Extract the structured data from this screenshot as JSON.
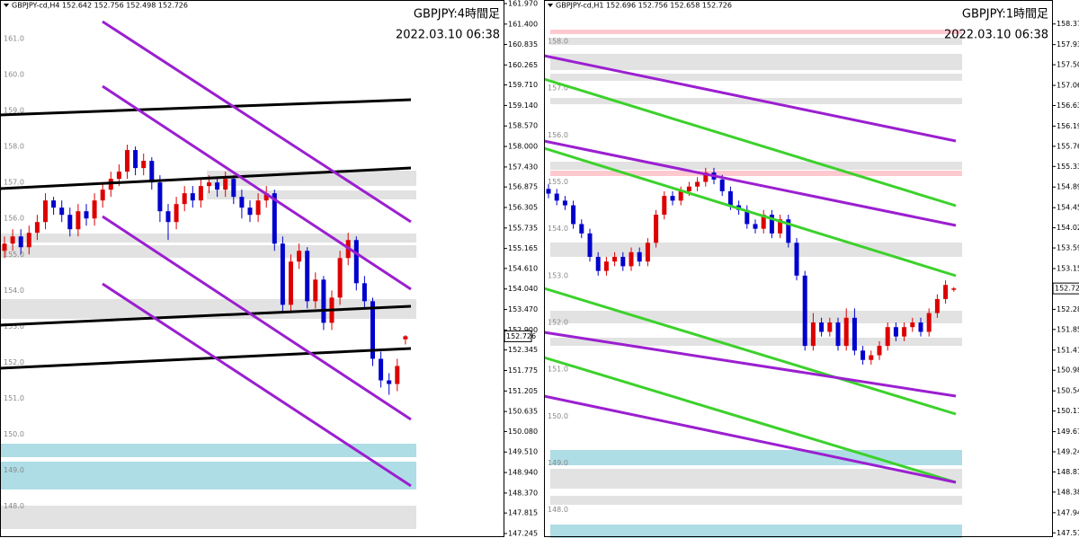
{
  "chart_data": [
    {
      "type": "candlestick",
      "title": "GBPJPY:4時間足",
      "subtitle": "2022.03.10 06:38",
      "header": "GBPJPY-cd,H4  152.642 152.756 152.498 152.726",
      "up_color": "#dd0000",
      "down_color": "#0000cc",
      "open": [
        155.1,
        155.3,
        155.5,
        155.2,
        155.6,
        155.9,
        156.5,
        156.3,
        156.1,
        155.7,
        156.2,
        156.0,
        156.5,
        156.8,
        157.1,
        157.3,
        157.9,
        157.4,
        157.6,
        157.0,
        156.2,
        155.9,
        156.4,
        156.7,
        156.5,
        156.9,
        157.0,
        156.8,
        157.1,
        156.6,
        156.3,
        156.1,
        156.5,
        156.7,
        155.3,
        153.6,
        154.8,
        155.1,
        153.7,
        154.3,
        153.1,
        153.8,
        154.9,
        155.4,
        154.2,
        153.7,
        152.1,
        151.5,
        151.4,
        152.642
      ],
      "high": [
        155.5,
        155.7,
        155.7,
        155.8,
        156.1,
        156.7,
        156.6,
        156.5,
        156.3,
        156.4,
        156.4,
        156.7,
        157.0,
        157.3,
        157.5,
        158.05,
        158.0,
        157.8,
        157.7,
        157.2,
        156.4,
        156.6,
        156.9,
        156.9,
        157.1,
        157.2,
        157.1,
        157.3,
        157.2,
        156.8,
        156.5,
        156.7,
        156.9,
        156.8,
        155.5,
        155.0,
        155.3,
        155.2,
        154.5,
        154.4,
        154.0,
        155.1,
        155.6,
        155.5,
        154.4,
        153.8,
        152.3,
        151.7,
        152.1,
        152.756
      ],
      "low": [
        154.9,
        155.1,
        155.0,
        155.0,
        155.4,
        155.7,
        156.1,
        155.9,
        155.5,
        155.5,
        155.8,
        155.8,
        156.3,
        156.6,
        156.9,
        157.1,
        157.2,
        157.2,
        156.8,
        155.9,
        155.4,
        155.7,
        156.2,
        156.3,
        156.3,
        156.7,
        156.6,
        156.6,
        156.4,
        156.0,
        155.9,
        155.9,
        156.3,
        155.1,
        153.4,
        153.4,
        154.6,
        153.5,
        153.5,
        152.9,
        152.9,
        153.6,
        154.7,
        154.0,
        153.5,
        151.9,
        151.3,
        151.1,
        151.2,
        152.498
      ],
      "close": [
        155.3,
        155.5,
        155.2,
        155.6,
        155.9,
        156.5,
        156.3,
        156.1,
        155.7,
        156.2,
        156.0,
        156.5,
        156.8,
        157.1,
        157.3,
        157.9,
        157.4,
        157.6,
        157.0,
        156.2,
        155.9,
        156.4,
        156.7,
        156.5,
        156.9,
        157.0,
        156.8,
        157.1,
        156.6,
        156.3,
        156.1,
        156.5,
        156.7,
        155.3,
        153.6,
        154.8,
        155.1,
        153.7,
        154.3,
        153.1,
        153.8,
        154.9,
        155.4,
        154.2,
        153.7,
        152.1,
        151.5,
        151.4,
        151.9,
        152.726
      ],
      "ylim": [
        147.245,
        161.97
      ],
      "yticks": [
        {
          "value": 161.97,
          "label": "161.970"
        },
        {
          "value": 161.4,
          "label": "161.400"
        },
        160.835,
        160.265,
        {
          "value": 159.71,
          "label": "159.710"
        },
        {
          "value": 159.14,
          "label": "159.140"
        },
        {
          "value": 158.57,
          "label": "158.570"
        },
        {
          "value": 158,
          "label": "158.000"
        },
        {
          "value": 157.43,
          "label": "157.430"
        },
        156.875,
        156.305,
        155.735,
        155.165,
        {
          "value": 154.61,
          "label": "154.610"
        },
        {
          "value": 154.04,
          "label": "154.040"
        },
        {
          "value": 153.47,
          "label": "153.470"
        },
        {
          "value": 152.9,
          "label": "152.900"
        },
        152.345,
        151.775,
        151.205,
        150.635,
        {
          "value": 150.08,
          "label": "150.080"
        },
        {
          "value": 149.51,
          "label": "149.510"
        },
        {
          "value": 148.94,
          "label": "148.940"
        },
        {
          "value": 148.37,
          "label": "148.370"
        },
        147.815,
        147.245
      ],
      "level_labels": [
        {
          "value": 161,
          "label": "161.0"
        },
        {
          "value": 160,
          "label": "160.0"
        },
        {
          "value": 159,
          "label": "159.0"
        },
        {
          "value": 158,
          "label": "158.0"
        },
        {
          "value": 157,
          "label": "157.0"
        },
        {
          "value": 156,
          "label": "156.0"
        },
        {
          "value": 155,
          "label": "155.0"
        },
        {
          "value": 154,
          "label": "154.0"
        },
        {
          "value": 153,
          "label": "153.0"
        },
        {
          "value": 152,
          "label": "152.0"
        },
        {
          "value": 151,
          "label": "151.0"
        },
        {
          "value": 150,
          "label": "150.0"
        },
        {
          "value": 149,
          "label": "149.0"
        },
        {
          "value": 148,
          "label": "148.0"
        }
      ],
      "last_price": 152.726
    },
    {
      "type": "candlestick",
      "title": "GBPJPY:1時間足",
      "subtitle": "2022.03.10 06:38",
      "header": "GBPJPY-cd,H1  152.696 152.756 152.658 152.726",
      "up_color": "#dd0000",
      "down_color": "#0000cc",
      "open": [
        154.85,
        154.75,
        154.6,
        154.5,
        154.1,
        153.9,
        153.4,
        153.1,
        153.3,
        153.4,
        153.2,
        153.5,
        153.3,
        153.7,
        154.3,
        154.7,
        154.6,
        154.8,
        154.9,
        155.0,
        155.2,
        155.05,
        154.8,
        154.5,
        154.4,
        154.1,
        154.0,
        154.3,
        153.9,
        154.2,
        153.7,
        153.0,
        151.5,
        152.0,
        151.8,
        152.0,
        151.5,
        152.1,
        151.4,
        151.2,
        151.3,
        151.5,
        151.9,
        151.7,
        151.9,
        152.0,
        151.8,
        152.2,
        152.5,
        152.696
      ],
      "high": [
        154.95,
        154.85,
        154.7,
        154.6,
        154.2,
        154.0,
        153.5,
        153.4,
        153.5,
        153.5,
        153.6,
        153.6,
        153.8,
        154.4,
        154.8,
        154.8,
        154.9,
        155.0,
        155.1,
        155.3,
        155.3,
        155.15,
        154.9,
        154.6,
        154.5,
        154.2,
        154.4,
        154.4,
        154.3,
        154.3,
        153.8,
        153.1,
        152.2,
        152.1,
        152.1,
        152.1,
        152.3,
        152.3,
        151.5,
        151.4,
        151.6,
        152.0,
        152.0,
        152.0,
        152.1,
        152.1,
        152.3,
        152.6,
        152.9,
        152.756
      ],
      "low": [
        154.65,
        154.5,
        154.4,
        154.0,
        153.8,
        153.3,
        153.0,
        153.0,
        153.2,
        153.1,
        153.1,
        153.2,
        153.2,
        153.6,
        154.2,
        154.5,
        154.5,
        154.7,
        154.8,
        154.9,
        154.95,
        154.7,
        154.4,
        154.3,
        154.0,
        153.9,
        153.9,
        153.8,
        153.8,
        153.6,
        152.9,
        151.4,
        151.4,
        151.7,
        151.7,
        151.4,
        151.4,
        151.3,
        151.1,
        151.1,
        151.2,
        151.4,
        151.6,
        151.6,
        151.8,
        151.7,
        151.7,
        152.1,
        152.4,
        152.658
      ],
      "close": [
        154.75,
        154.6,
        154.5,
        154.1,
        153.9,
        153.4,
        153.1,
        153.3,
        153.4,
        153.2,
        153.5,
        153.3,
        153.7,
        154.3,
        154.7,
        154.6,
        154.8,
        154.9,
        155.0,
        155.2,
        155.05,
        154.8,
        154.5,
        154.4,
        154.1,
        154.0,
        154.3,
        153.9,
        154.2,
        153.7,
        153.0,
        151.5,
        152.0,
        151.8,
        152.0,
        151.5,
        152.1,
        151.4,
        151.2,
        151.3,
        151.5,
        151.9,
        151.7,
        151.9,
        152.0,
        151.8,
        152.2,
        152.5,
        152.8,
        152.726
      ],
      "ylim": [
        147.4,
        158.805
      ],
      "yticks": [
        {
          "value": 158.37,
          "label": "158.370"
        },
        {
          "value": 157.93,
          "label": "157.930"
        },
        {
          "value": 157.5,
          "label": "157.500"
        },
        {
          "value": 157.06,
          "label": "157.060"
        },
        {
          "value": 156.63,
          "label": "156.630"
        },
        {
          "value": 156.19,
          "label": "156.190"
        },
        {
          "value": 155.76,
          "label": "155.760"
        },
        {
          "value": 155.33,
          "label": "155.330"
        },
        {
          "value": 154.89,
          "label": "154.890"
        },
        {
          "value": 154.45,
          "label": "154.450"
        },
        {
          "value": 154.02,
          "label": "154.020"
        },
        {
          "value": 153.59,
          "label": "153.590"
        },
        {
          "value": 153.15,
          "label": "153.150"
        },
        {
          "value": 152.28,
          "label": "152.280"
        },
        {
          "value": 151.85,
          "label": "151.850"
        },
        {
          "value": 151.41,
          "label": "151.410"
        },
        {
          "value": 150.98,
          "label": "150.980"
        },
        {
          "value": 150.54,
          "label": "150.540"
        },
        {
          "value": 150.11,
          "label": "150.110"
        },
        {
          "value": 149.67,
          "label": "149.670"
        },
        {
          "value": 149.24,
          "label": "149.240"
        },
        {
          "value": 148.81,
          "label": "148.810"
        },
        {
          "value": 148.38,
          "label": "148.380"
        },
        {
          "value": 147.94,
          "label": "147.940"
        },
        {
          "value": 147.51,
          "label": "147.510"
        }
      ],
      "level_labels": [
        {
          "value": 158,
          "label": "158.0"
        },
        {
          "value": 157,
          "label": "157.0"
        },
        {
          "value": 156,
          "label": "156.0"
        },
        {
          "value": 155,
          "label": "155.0"
        },
        {
          "value": 154,
          "label": "154.0"
        },
        {
          "value": 153,
          "label": "153.0"
        },
        {
          "value": 152,
          "label": "152.0"
        },
        {
          "value": 151,
          "label": "151.0"
        },
        {
          "value": 150,
          "label": "150.0"
        },
        {
          "value": 149,
          "label": "149.0"
        },
        {
          "value": 148,
          "label": "148.0"
        }
      ],
      "last_price": 152.726
    }
  ]
}
